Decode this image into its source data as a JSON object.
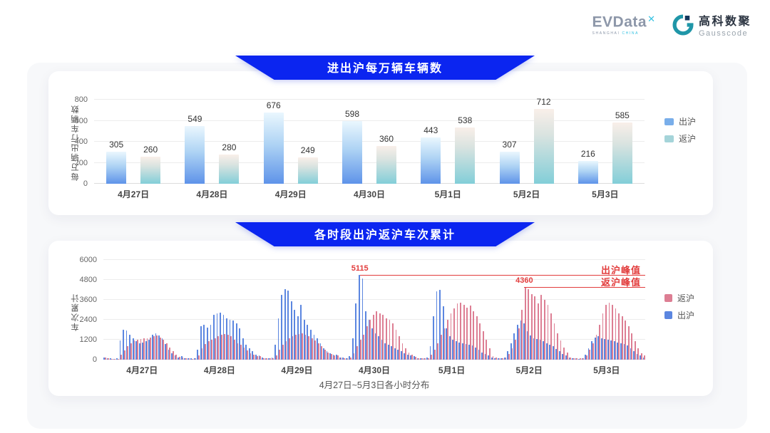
{
  "header": {
    "evdata_name": "EVData",
    "evdata_mark": "✕",
    "evdata_sub_1": "SHANGHAI",
    "evdata_sub_2": "CHINA",
    "gausscode_cn": "高科数聚",
    "gausscode_en": "Gausscode"
  },
  "colors": {
    "banner_blue": "#0b25f0",
    "c1_blue_top": "#eaf7fe",
    "c1_blue_bottom": "#5e93e9",
    "c1_teal_top": "#f9efe9",
    "c1_teal_bottom": "#82ced8",
    "c1_legend_blue": "#79aeea",
    "c1_legend_teal": "#a5d4d9",
    "c2_blue": "#5b86e0",
    "c2_pink": "#dd7e93",
    "annotation_red": "#e23c3c"
  },
  "chart_data": [
    {
      "type": "bar",
      "title": "进出沪每万辆车辆数",
      "ylabel": "每万辆出行车辆数",
      "ylim": [
        0,
        800
      ],
      "yticks": [
        0,
        200,
        400,
        600,
        800
      ],
      "grid": true,
      "legend_position": "right",
      "categories": [
        "4月27日",
        "4月28日",
        "4月29日",
        "4月30日",
        "5月1日",
        "5月2日",
        "5月3日"
      ],
      "series": [
        {
          "name": "出沪",
          "values": [
            305,
            549,
            676,
            598,
            443,
            307,
            216
          ]
        },
        {
          "name": "返沪",
          "values": [
            260,
            280,
            249,
            360,
            538,
            712,
            585
          ]
        }
      ]
    },
    {
      "type": "bar",
      "title": "各时段出沪返沪车次累计",
      "ylabel": "车次累计",
      "xlabel": "4月27日~5月3日各小时分布",
      "ylim": [
        0,
        6000
      ],
      "yticks": [
        0,
        1200,
        2400,
        3600,
        4800,
        6000
      ],
      "grid": true,
      "legend_position": "right",
      "legend_order": [
        "返沪",
        "出沪"
      ],
      "categories": [
        "4月27日",
        "4月28日",
        "4月29日",
        "4月30日",
        "5月1日",
        "5月2日",
        "5月3日"
      ],
      "hours_per_day": 24,
      "series": [
        {
          "name": "出沪",
          "values_by_day": [
            [
              150,
              100,
              80,
              60,
              80,
              1150,
              1800,
              1750,
              1500,
              1300,
              1100,
              1000,
              1050,
              1100,
              1200,
              1500,
              1600,
              1450,
              1300,
              950,
              600,
              400,
              250,
              150
            ],
            [
              200,
              100,
              80,
              70,
              100,
              600,
              2000,
              2100,
              1950,
              2100,
              2700,
              2800,
              2850,
              2700,
              2500,
              2400,
              2350,
              2200,
              1900,
              1300,
              900,
              700,
              500,
              300
            ],
            [
              250,
              120,
              100,
              90,
              150,
              900,
              2500,
              3900,
              4250,
              4150,
              3500,
              3000,
              2600,
              3300,
              2400,
              2100,
              1800,
              1500,
              1300,
              1000,
              700,
              500,
              400,
              300
            ],
            [
              300,
              150,
              120,
              100,
              200,
              1300,
              3400,
              5115,
              4900,
              2900,
              2400,
              1900,
              1600,
              1400,
              1200,
              1000,
              900,
              800,
              700,
              600,
              500,
              400,
              300,
              250
            ],
            [
              200,
              100,
              90,
              80,
              150,
              800,
              2600,
              4100,
              4200,
              3200,
              1900,
              1400,
              1200,
              1100,
              1050,
              1000,
              950,
              900,
              850,
              750,
              600,
              450,
              350,
              250
            ],
            [
              150,
              100,
              80,
              80,
              120,
              500,
              1000,
              1600,
              2100,
              2350,
              2200,
              1700,
              1450,
              1300,
              1250,
              1200,
              1100,
              1000,
              900,
              800,
              650,
              500,
              350,
              250
            ],
            [
              120,
              80,
              70,
              60,
              80,
              300,
              700,
              1100,
              1350,
              1400,
              1300,
              1250,
              1200,
              1150,
              1100,
              1050,
              1000,
              950,
              850,
              700,
              500,
              350,
              250,
              150
            ]
          ]
        },
        {
          "name": "返沪",
          "values_by_day": [
            [
              120,
              80,
              60,
              50,
              60,
              300,
              550,
              800,
              1000,
              1150,
              1200,
              1250,
              1300,
              1300,
              1350,
              1400,
              1450,
              1350,
              1200,
              1000,
              750,
              500,
              300,
              180
            ],
            [
              150,
              80,
              70,
              60,
              80,
              250,
              700,
              950,
              1100,
              1200,
              1300,
              1400,
              1500,
              1550,
              1500,
              1400,
              1200,
              1000,
              900,
              750,
              550,
              400,
              300,
              200
            ],
            [
              200,
              100,
              80,
              70,
              100,
              250,
              600,
              900,
              1100,
              1300,
              1400,
              1500,
              1550,
              1600,
              1500,
              1400,
              1300,
              1150,
              1000,
              800,
              600,
              450,
              350,
              250
            ],
            [
              250,
              120,
              100,
              90,
              150,
              400,
              800,
              1200,
              1500,
              2000,
              2400,
              2700,
              2900,
              2800,
              2700,
              2500,
              2400,
              2200,
              1800,
              1400,
              1000,
              700,
              450,
              300
            ],
            [
              180,
              100,
              80,
              70,
              100,
              300,
              600,
              1000,
              1500,
              1900,
              2400,
              2800,
              3100,
              3400,
              3450,
              3300,
              3150,
              3250,
              2900,
              2600,
              2200,
              1700,
              1200,
              700
            ],
            [
              200,
              120,
              100,
              90,
              150,
              350,
              700,
              1200,
              1900,
              3000,
              4360,
              4250,
              3950,
              3800,
              3400,
              3900,
              3600,
              3300,
              2800,
              2200,
              1600,
              1150,
              750,
              450
            ],
            [
              150,
              100,
              80,
              70,
              100,
              250,
              600,
              1000,
              1500,
              2100,
              2800,
              3300,
              3450,
              3300,
              3100,
              2800,
              2600,
              2350,
              2000,
              1600,
              1100,
              700,
              400,
              250
            ]
          ]
        }
      ],
      "annotations": [
        {
          "value_label": "5115",
          "value": 5115,
          "series": "出沪",
          "day_index": 3,
          "hour": 7,
          "line_label": "出沪峰值"
        },
        {
          "value_label": "4360",
          "value": 4360,
          "series": "返沪",
          "day_index": 5,
          "hour": 10,
          "line_label": "返沪峰值"
        }
      ]
    }
  ]
}
